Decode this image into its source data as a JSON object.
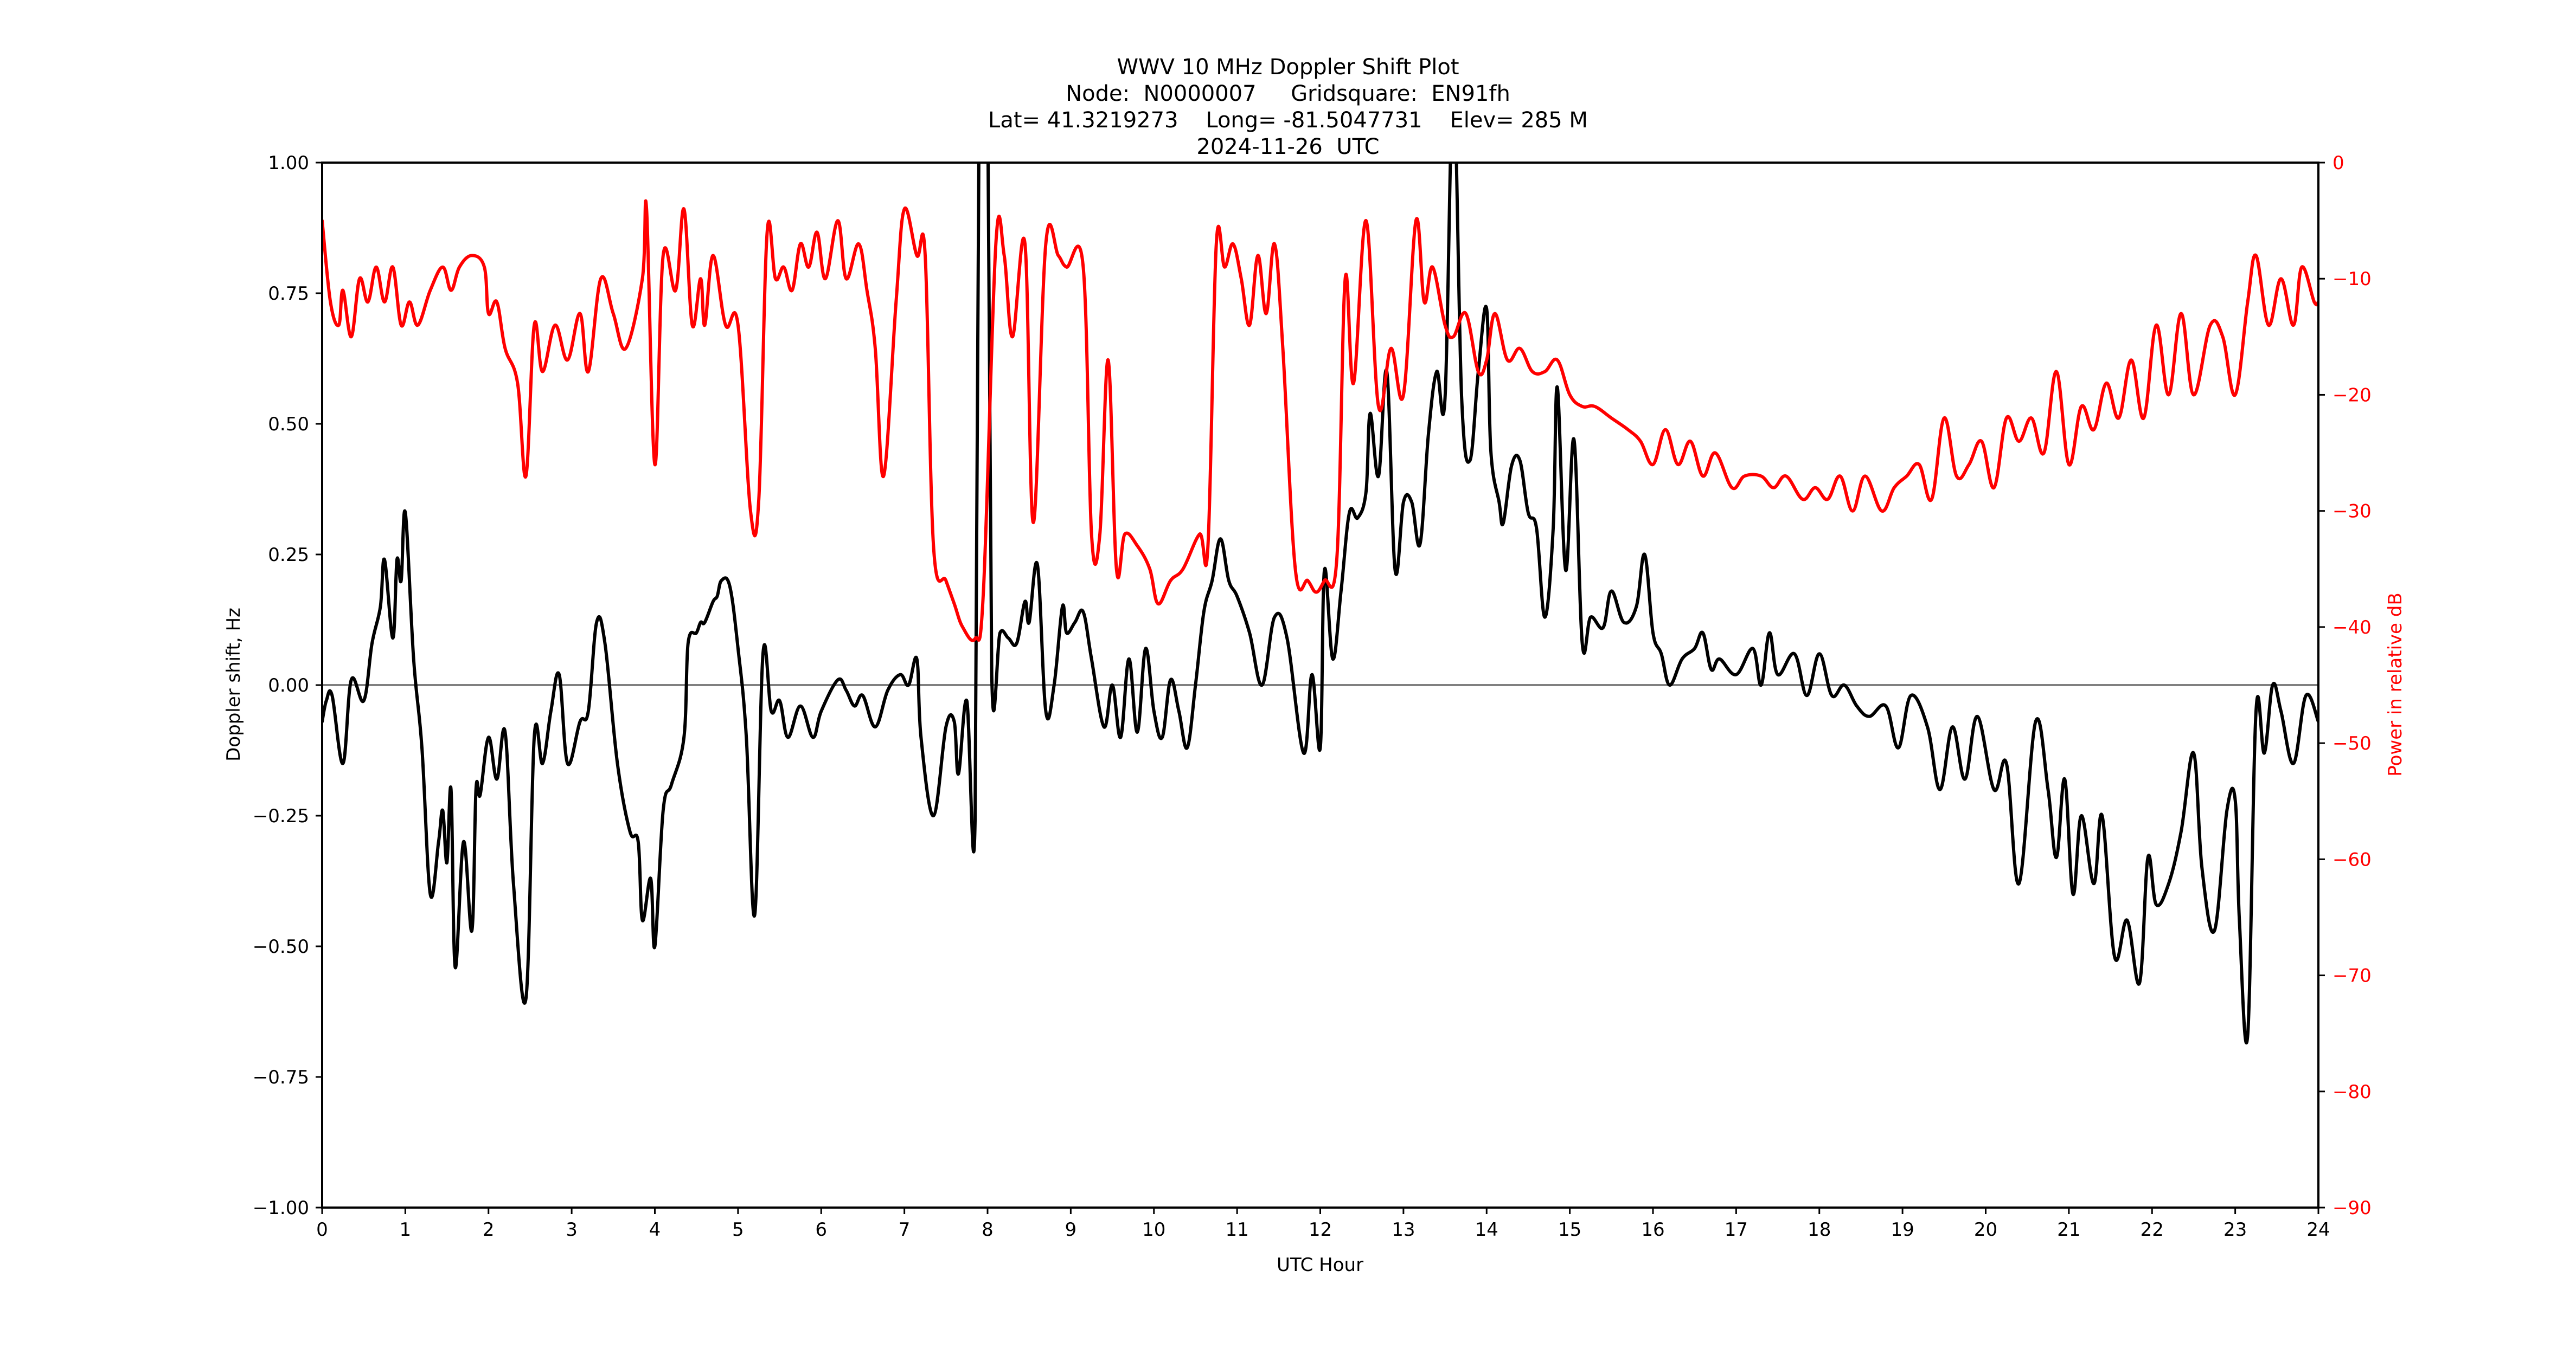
{
  "title_lines": [
    "WWV 10 MHz Doppler Shift Plot",
    "Node:  N0000007     Gridsquare:  EN91fh",
    "Lat= 41.3219273    Long= -81.5047731    Elev= 285 M",
    "2024-11-26  UTC"
  ],
  "colors": {
    "doppler": "#000000",
    "power": "#ff0000",
    "zero_line": "#808080",
    "axes": "#000000",
    "right_axis_text": "#ff0000"
  },
  "chart_data": {
    "type": "line",
    "title": "WWV 10 MHz Doppler Shift Plot",
    "subtitle": [
      "Node:  N0000007     Gridsquare:  EN91fh",
      "Lat= 41.3219273    Long= -81.5047731    Elev= 285 M",
      "2024-11-26  UTC"
    ],
    "xlabel": "UTC Hour",
    "ylabel": "Doppler shift, Hz",
    "ylabel_right": "Power in relative dB",
    "xlim": [
      0,
      24
    ],
    "ylim": [
      -1.0,
      1.0
    ],
    "ylim_right": [
      -90,
      0
    ],
    "xticks": [
      0,
      1,
      2,
      3,
      4,
      5,
      6,
      7,
      8,
      9,
      10,
      11,
      12,
      13,
      14,
      15,
      16,
      17,
      18,
      19,
      20,
      21,
      22,
      23,
      24
    ],
    "yticks": [
      "1.00",
      "0.75",
      "0.50",
      "0.25",
      "0.00",
      "−0.25",
      "−0.50",
      "−0.75",
      "−1.00"
    ],
    "yticks_values": [
      1.0,
      0.75,
      0.5,
      0.25,
      0.0,
      -0.25,
      -0.5,
      -0.75,
      -1.0
    ],
    "yticks_right": [
      "0",
      "−10",
      "−20",
      "−30",
      "−40",
      "−50",
      "−60",
      "−70",
      "−80",
      "−90"
    ],
    "yticks_right_values": [
      0,
      -10,
      -20,
      -30,
      -40,
      -50,
      -60,
      -70,
      -80,
      -90
    ],
    "grid": false,
    "legend": null,
    "reference_line": {
      "y": 0.0,
      "color": "#808080"
    },
    "series": [
      {
        "name": "Doppler shift (Hz)",
        "axis": "left",
        "color": "#000000",
        "x": [
          0.0,
          0.05,
          0.12,
          0.25,
          0.35,
          0.5,
          0.6,
          0.7,
          0.75,
          0.85,
          0.9,
          0.95,
          1.0,
          1.1,
          1.2,
          1.3,
          1.4,
          1.45,
          1.5,
          1.55,
          1.6,
          1.7,
          1.8,
          1.85,
          1.9,
          2.0,
          2.1,
          2.2,
          2.3,
          2.45,
          2.55,
          2.65,
          2.75,
          2.85,
          2.95,
          3.1,
          3.2,
          3.3,
          3.4,
          3.55,
          3.7,
          3.8,
          3.85,
          3.95,
          4.0,
          4.1,
          4.2,
          4.35,
          4.4,
          4.5,
          4.55,
          4.6,
          4.7,
          4.75,
          4.8,
          4.9,
          5.0,
          5.1,
          5.2,
          5.3,
          5.4,
          5.5,
          5.6,
          5.75,
          5.9,
          6.0,
          6.2,
          6.3,
          6.4,
          6.5,
          6.65,
          6.8,
          6.95,
          7.05,
          7.15,
          7.2,
          7.35,
          7.5,
          7.6,
          7.65,
          7.75,
          7.85,
          7.9,
          8.0,
          8.05,
          8.15,
          8.25,
          8.35,
          8.45,
          8.5,
          8.6,
          8.7,
          8.8,
          8.9,
          8.95,
          9.05,
          9.15,
          9.25,
          9.4,
          9.5,
          9.6,
          9.7,
          9.8,
          9.9,
          10.0,
          10.1,
          10.2,
          10.3,
          10.4,
          10.5,
          10.6,
          10.7,
          10.8,
          10.9,
          11.0,
          11.15,
          11.3,
          11.45,
          11.6,
          11.8,
          11.9,
          12.0,
          12.05,
          12.15,
          12.25,
          12.35,
          12.45,
          12.55,
          12.6,
          12.7,
          12.8,
          12.9,
          13.0,
          13.1,
          13.2,
          13.3,
          13.4,
          13.5,
          13.6,
          13.7,
          13.8,
          13.9,
          14.0,
          14.05,
          14.15,
          14.2,
          14.3,
          14.4,
          14.5,
          14.6,
          14.7,
          14.8,
          14.85,
          14.95,
          15.05,
          15.15,
          15.25,
          15.4,
          15.5,
          15.65,
          15.8,
          15.9,
          16.0,
          16.1,
          16.2,
          16.35,
          16.5,
          16.6,
          16.7,
          16.8,
          17.0,
          17.2,
          17.3,
          17.4,
          17.5,
          17.7,
          17.85,
          18.0,
          18.15,
          18.3,
          18.45,
          18.6,
          18.8,
          18.95,
          19.1,
          19.3,
          19.45,
          19.6,
          19.75,
          19.9,
          20.1,
          20.25,
          20.4,
          20.6,
          20.75,
          20.85,
          20.95,
          21.05,
          21.15,
          21.3,
          21.4,
          21.55,
          21.7,
          21.85,
          21.95,
          22.05,
          22.2,
          22.35,
          22.5,
          22.6,
          22.75,
          22.9,
          23.0,
          23.05,
          23.15,
          23.25,
          23.35,
          23.45,
          23.55,
          23.7,
          23.85,
          24.0
        ],
        "values": [
          -0.07,
          -0.03,
          -0.02,
          -0.15,
          0.01,
          -0.03,
          0.08,
          0.15,
          0.24,
          0.09,
          0.24,
          0.2,
          0.33,
          0.05,
          -0.12,
          -0.4,
          -0.3,
          -0.24,
          -0.34,
          -0.2,
          -0.54,
          -0.3,
          -0.47,
          -0.2,
          -0.21,
          -0.1,
          -0.18,
          -0.09,
          -0.38,
          -0.6,
          -0.1,
          -0.15,
          -0.05,
          0.02,
          -0.15,
          -0.07,
          -0.05,
          0.12,
          0.08,
          -0.15,
          -0.28,
          -0.3,
          -0.45,
          -0.37,
          -0.5,
          -0.24,
          -0.19,
          -0.1,
          0.08,
          0.1,
          0.12,
          0.12,
          0.16,
          0.17,
          0.2,
          0.19,
          0.07,
          -0.1,
          -0.44,
          0.06,
          -0.05,
          -0.03,
          -0.1,
          -0.04,
          -0.1,
          -0.05,
          0.01,
          -0.01,
          -0.04,
          -0.02,
          -0.08,
          -0.01,
          0.02,
          0.0,
          0.05,
          -0.1,
          -0.25,
          -0.08,
          -0.07,
          -0.17,
          -0.03,
          -0.26,
          1.0,
          1.0,
          0.02,
          0.1,
          0.09,
          0.08,
          0.16,
          0.12,
          0.23,
          -0.05,
          0.0,
          0.15,
          0.1,
          0.12,
          0.14,
          0.05,
          -0.08,
          0.0,
          -0.1,
          0.05,
          -0.09,
          0.07,
          -0.05,
          -0.1,
          0.01,
          -0.05,
          -0.12,
          0.0,
          0.14,
          0.2,
          0.28,
          0.2,
          0.17,
          0.1,
          0.0,
          0.13,
          0.09,
          -0.13,
          0.02,
          -0.12,
          0.22,
          0.05,
          0.18,
          0.33,
          0.32,
          0.37,
          0.52,
          0.4,
          0.6,
          0.22,
          0.35,
          0.35,
          0.27,
          0.48,
          0.6,
          0.55,
          1.0,
          0.55,
          0.43,
          0.6,
          0.72,
          0.45,
          0.35,
          0.31,
          0.42,
          0.43,
          0.33,
          0.3,
          0.13,
          0.3,
          0.57,
          0.22,
          0.47,
          0.08,
          0.13,
          0.11,
          0.18,
          0.12,
          0.15,
          0.25,
          0.1,
          0.06,
          0.0,
          0.05,
          0.07,
          0.1,
          0.03,
          0.05,
          0.02,
          0.07,
          0.0,
          0.1,
          0.02,
          0.06,
          -0.02,
          0.06,
          -0.02,
          0.0,
          -0.04,
          -0.06,
          -0.04,
          -0.12,
          -0.02,
          -0.08,
          -0.2,
          -0.08,
          -0.18,
          -0.06,
          -0.2,
          -0.15,
          -0.38,
          -0.07,
          -0.2,
          -0.33,
          -0.18,
          -0.4,
          -0.25,
          -0.38,
          -0.25,
          -0.52,
          -0.45,
          -0.57,
          -0.33,
          -0.42,
          -0.38,
          -0.28,
          -0.13,
          -0.35,
          -0.47,
          -0.24,
          -0.22,
          -0.45,
          -0.67,
          -0.05,
          -0.13,
          0.0,
          -0.05,
          -0.15,
          -0.02,
          -0.07
        ]
      },
      {
        "name": "Power (relative dB)",
        "axis": "right",
        "color": "#ff0000",
        "x": [
          0.0,
          0.1,
          0.2,
          0.25,
          0.35,
          0.45,
          0.55,
          0.65,
          0.75,
          0.85,
          0.95,
          1.05,
          1.15,
          1.3,
          1.45,
          1.55,
          1.65,
          1.8,
          1.95,
          2.0,
          2.1,
          2.2,
          2.35,
          2.45,
          2.55,
          2.65,
          2.8,
          2.95,
          3.1,
          3.2,
          3.35,
          3.5,
          3.65,
          3.85,
          3.9,
          4.0,
          4.1,
          4.25,
          4.35,
          4.45,
          4.55,
          4.6,
          4.7,
          4.85,
          5.0,
          5.15,
          5.25,
          5.35,
          5.45,
          5.55,
          5.65,
          5.75,
          5.85,
          5.95,
          6.05,
          6.2,
          6.3,
          6.45,
          6.55,
          6.65,
          6.75,
          6.9,
          7.0,
          7.15,
          7.25,
          7.35,
          7.5,
          7.6,
          7.7,
          7.85,
          7.95,
          8.1,
          8.2,
          8.3,
          8.45,
          8.55,
          8.7,
          8.85,
          8.95,
          9.15,
          9.25,
          9.35,
          9.45,
          9.55,
          9.65,
          9.8,
          9.95,
          10.05,
          10.2,
          10.35,
          10.55,
          10.65,
          10.75,
          10.85,
          10.95,
          11.05,
          11.15,
          11.25,
          11.35,
          11.45,
          11.55,
          11.7,
          11.85,
          11.95,
          12.05,
          12.2,
          12.3,
          12.4,
          12.55,
          12.7,
          12.85,
          13.0,
          13.15,
          13.25,
          13.35,
          13.5,
          13.6,
          13.75,
          13.9,
          14.0,
          14.1,
          14.25,
          14.4,
          14.55,
          14.7,
          14.85,
          15.0,
          15.15,
          15.3,
          15.5,
          15.7,
          15.85,
          16.0,
          16.15,
          16.3,
          16.45,
          16.6,
          16.75,
          16.95,
          17.1,
          17.3,
          17.45,
          17.6,
          17.8,
          17.95,
          18.1,
          18.25,
          18.4,
          18.55,
          18.75,
          18.9,
          19.05,
          19.2,
          19.35,
          19.5,
          19.65,
          19.8,
          19.95,
          20.1,
          20.25,
          20.4,
          20.55,
          20.7,
          20.85,
          21.0,
          21.15,
          21.3,
          21.45,
          21.6,
          21.75,
          21.9,
          22.05,
          22.2,
          22.35,
          22.5,
          22.7,
          22.85,
          23.0,
          23.15,
          23.25,
          23.4,
          23.55,
          23.7,
          23.8,
          23.95,
          24.0
        ],
        "values": [
          -5,
          -12,
          -14,
          -11,
          -15,
          -10,
          -12,
          -9,
          -12,
          -9,
          -14,
          -12,
          -14,
          -11,
          -9,
          -11,
          -9,
          -8,
          -9,
          -13,
          -12,
          -16,
          -19,
          -27,
          -14,
          -18,
          -14,
          -17,
          -13,
          -18,
          -10,
          -13,
          -16,
          -10,
          -4,
          -26,
          -8,
          -11,
          -4,
          -14,
          -10,
          -14,
          -8,
          -14,
          -14,
          -30,
          -29,
          -6,
          -10,
          -9,
          -11,
          -7,
          -9,
          -6,
          -10,
          -5,
          -10,
          -7,
          -11,
          -16,
          -27,
          -12,
          -4,
          -8,
          -8,
          -33,
          -36,
          -38,
          -40,
          -41,
          -37,
          -7,
          -8,
          -15,
          -7,
          -31,
          -7,
          -8,
          -9,
          -9,
          -32,
          -32,
          -17,
          -35,
          -32,
          -33,
          -35,
          -38,
          -36,
          -35,
          -32,
          -33,
          -7,
          -9,
          -7,
          -10,
          -14,
          -8,
          -13,
          -7,
          -16,
          -35,
          -36,
          -37,
          -36,
          -34,
          -10,
          -19,
          -5,
          -21,
          -16,
          -20,
          -5,
          -12,
          -9,
          -14,
          -15,
          -13,
          -18,
          -17,
          -13,
          -17,
          -16,
          -18,
          -18,
          -17,
          -20,
          -21,
          -21,
          -22,
          -23,
          -24,
          -26,
          -23,
          -26,
          -24,
          -27,
          -25,
          -28,
          -27,
          -27,
          -28,
          -27,
          -29,
          -28,
          -29,
          -27,
          -30,
          -27,
          -30,
          -28,
          -27,
          -26,
          -29,
          -22,
          -27,
          -26,
          -24,
          -28,
          -22,
          -24,
          -22,
          -25,
          -18,
          -26,
          -21,
          -23,
          -19,
          -22,
          -17,
          -22,
          -14,
          -20,
          -13,
          -20,
          -14,
          -15,
          -20,
          -12,
          -8,
          -14,
          -10,
          -14,
          -9,
          -12,
          -12
        ]
      }
    ]
  }
}
